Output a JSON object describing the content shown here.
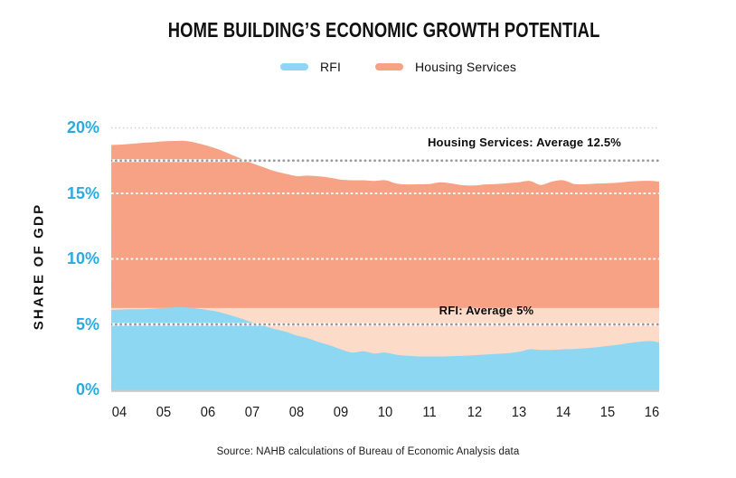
{
  "title": "HOME BUILDING’S ECONOMIC GROWTH POTENTIAL",
  "legend": [
    {
      "label": "RFI",
      "swatch": "rfi"
    },
    {
      "label": "Housing Services",
      "swatch": "housing"
    }
  ],
  "y_axis": {
    "title": "SHARE OF GDP"
  },
  "annotations": {
    "housing": "Housing Services: Average 12.5%",
    "rfi": "RFI: Average 5%"
  },
  "source": "Source: NAHB calculations of Bureau of Economic Analysis data",
  "colors": {
    "rfi_area": "#8ed7f2",
    "housing_area": "#f7a285",
    "gap_area": "#fcdbc9",
    "axis_label_blue": "#29abe2",
    "average_line": "#9b9b9b",
    "gridline_white": "#ffffff",
    "gridline_light": "#d2d2d2",
    "baseline": "#c8c8c8"
  },
  "chart_data": {
    "type": "area",
    "title": "HOME BUILDING'S ECONOMIC GROWTH POTENTIAL",
    "ylabel": "SHARE OF GDP",
    "ylim": [
      0,
      20
    ],
    "grid": true,
    "legend_position": "top",
    "x_tick_labels": [
      "04",
      "05",
      "06",
      "07",
      "08",
      "09",
      "10",
      "11",
      "12",
      "13",
      "14",
      "15",
      "16"
    ],
    "y_ticks": [
      {
        "label": "20%",
        "value": 20
      },
      {
        "label": "15%",
        "value": 15
      },
      {
        "label": "10%",
        "value": 10
      },
      {
        "label": "5%",
        "value": 5
      },
      {
        "label": "0%",
        "value": 0
      }
    ],
    "x": [
      2003.83,
      2004,
      2004.25,
      2004.5,
      2004.75,
      2005,
      2005.25,
      2005.5,
      2005.75,
      2006,
      2006.25,
      2006.5,
      2006.75,
      2007,
      2007.25,
      2007.5,
      2007.75,
      2008,
      2008.25,
      2008.5,
      2008.75,
      2009,
      2009.25,
      2009.5,
      2009.75,
      2010,
      2010.25,
      2010.5,
      2010.75,
      2011,
      2011.25,
      2011.5,
      2011.75,
      2012,
      2012.25,
      2012.5,
      2012.75,
      2013,
      2013.25,
      2013.5,
      2013.75,
      2014,
      2014.25,
      2014.5,
      2014.75,
      2015,
      2015.25,
      2015.5,
      2015.75,
      2016,
      2016.15
    ],
    "series": [
      {
        "name": "RFI",
        "values": [
          6.1,
          6.12,
          6.15,
          6.15,
          6.2,
          6.25,
          6.3,
          6.3,
          6.22,
          6.1,
          5.95,
          5.7,
          5.45,
          5.15,
          4.9,
          4.65,
          4.45,
          4.15,
          3.95,
          3.65,
          3.4,
          3.1,
          2.85,
          2.95,
          2.78,
          2.85,
          2.68,
          2.6,
          2.55,
          2.55,
          2.55,
          2.58,
          2.6,
          2.65,
          2.7,
          2.75,
          2.8,
          2.9,
          3.1,
          3.05,
          3.05,
          3.1,
          3.12,
          3.18,
          3.25,
          3.35,
          3.45,
          3.58,
          3.68,
          3.72,
          3.62
        ]
      },
      {
        "name": "Housing Services",
        "values": [
          12.6,
          12.6,
          12.63,
          12.7,
          12.7,
          12.72,
          12.7,
          12.7,
          12.63,
          12.52,
          12.4,
          12.3,
          12.2,
          12.15,
          12.1,
          12.05,
          12.05,
          12.17,
          12.4,
          12.65,
          12.8,
          12.95,
          13.15,
          13.05,
          13.17,
          13.15,
          13.07,
          13.08,
          13.15,
          13.17,
          13.3,
          13.17,
          13.02,
          12.95,
          12.98,
          12.97,
          12.98,
          12.95,
          12.85,
          12.6,
          12.85,
          12.9,
          12.6,
          12.52,
          12.5,
          12.43,
          12.37,
          12.32,
          12.27,
          12.23,
          12.28
        ]
      }
    ],
    "stacked": true,
    "rfi_average": 5,
    "housing_services_average": 12.5,
    "rfi_average_line_y": 5,
    "housing_average_line_y_stacked": 17.5,
    "rfi_potential_level": 6.25,
    "light_gridlines": [
      20
    ],
    "white_gridlines": [
      15,
      10
    ]
  }
}
